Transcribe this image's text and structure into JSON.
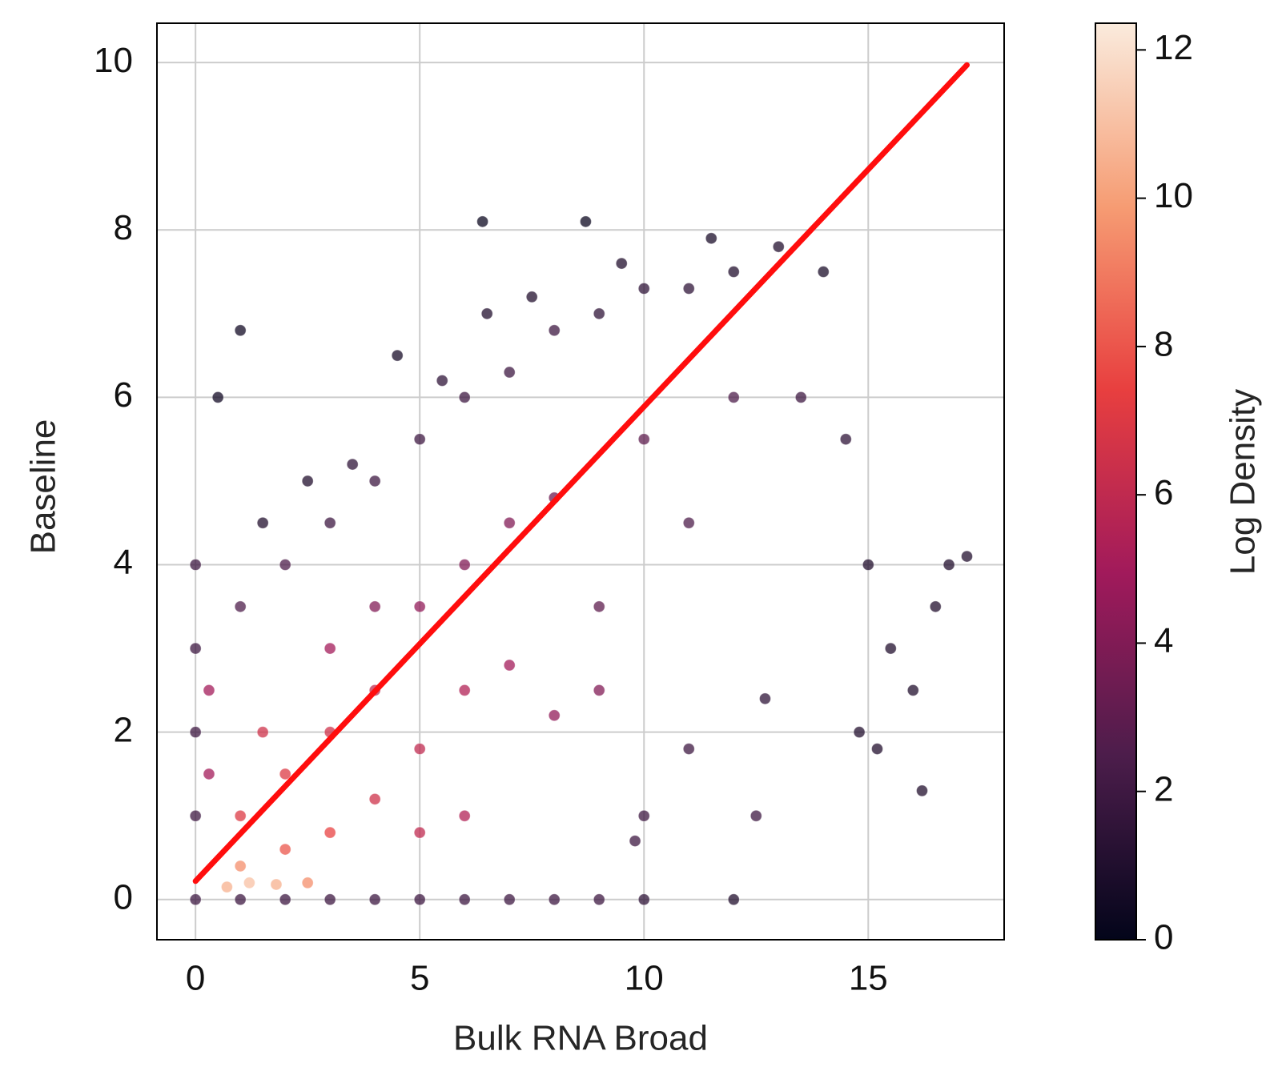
{
  "chart_data": {
    "type": "scatter",
    "x_label": "Bulk RNA Broad",
    "y_label": "Baseline",
    "colorbar_label": "Log Density",
    "xlim": [
      -0.86,
      18.03
    ],
    "ylim": [
      -0.48,
      10.47
    ],
    "clim": [
      0,
      12.36
    ],
    "xticks": [
      0,
      5,
      10,
      15
    ],
    "yticks": [
      0,
      2,
      4,
      6,
      8,
      10
    ],
    "cticks": [
      0,
      2,
      4,
      6,
      8,
      10,
      12
    ],
    "grid": true,
    "colormap": [
      "#03051a",
      "#4c1d4b",
      "#a11a5b",
      "#e83f3f",
      "#f69c73",
      "#faebdd"
    ],
    "x": [
      3,
      4,
      5,
      6,
      7,
      8,
      9,
      10,
      11,
      12,
      13,
      14,
      2,
      1,
      3.5,
      5.5,
      6.5,
      7.5,
      9.5,
      11.5,
      2.5,
      1.5,
      0.5,
      1,
      4.5,
      6.4,
      8.7,
      4,
      6,
      8,
      10,
      12,
      13.5,
      14.5,
      9,
      11,
      3,
      5,
      7,
      1,
      2,
      3,
      4,
      5,
      6,
      7,
      2,
      3,
      5,
      6,
      4,
      1.5,
      8,
      9,
      0.7,
      1.2,
      1.8,
      2.5,
      1,
      15,
      15.5,
      16,
      16.5,
      14.8,
      15.2,
      16.2,
      12.7,
      11,
      10,
      9.8,
      12.5,
      16.8,
      17.2,
      0,
      1,
      2,
      3,
      4,
      5,
      6,
      7,
      8,
      9,
      10,
      12,
      0,
      0,
      0,
      0,
      0.3,
      0.3
    ],
    "y": [
      4.5,
      5,
      5.5,
      6,
      6.3,
      6.8,
      7,
      7.3,
      7.3,
      7.5,
      7.8,
      7.5,
      4,
      3.5,
      5.2,
      6.2,
      7,
      7.2,
      7.6,
      7.9,
      5,
      4.5,
      6,
      6.8,
      6.5,
      8.1,
      8.1,
      3.5,
      4,
      4.8,
      5.5,
      6,
      6,
      5.5,
      3.5,
      4.5,
      3,
      3.5,
      4.5,
      1,
      1.5,
      2,
      1.2,
      1.8,
      2.5,
      2.8,
      0.6,
      0.8,
      0.8,
      1,
      2.5,
      2,
      2.2,
      2.5,
      0.15,
      0.2,
      0.18,
      0.2,
      0.4,
      4,
      3,
      2.5,
      3.5,
      2,
      1.8,
      1.3,
      2.4,
      1.8,
      1,
      0.7,
      1,
      4,
      4.1,
      0,
      0,
      0,
      0,
      0,
      0,
      0,
      0,
      0,
      0,
      0,
      0,
      1,
      2,
      3,
      4,
      2.5,
      1.5
    ],
    "density": [
      2,
      2,
      2,
      2,
      2,
      2,
      1.5,
      1.5,
      1.5,
      1,
      1,
      0.8,
      2.5,
      2.5,
      1.5,
      1.5,
      1,
      1,
      1,
      0.8,
      1,
      1,
      0.5,
      0.5,
      0.7,
      0.3,
      0.3,
      4,
      4,
      3.5,
      3,
      2.5,
      2,
      1.5,
      3,
      2.5,
      5,
      4.5,
      4,
      7,
      7,
      6.5,
      6.5,
      6,
      5.5,
      5,
      8,
      7.5,
      6,
      5.5,
      6,
      6.5,
      4.5,
      4,
      10.5,
      11,
      10.5,
      9.5,
      9.5,
      1,
      1,
      1,
      1,
      1,
      1,
      1,
      1.5,
      2,
      2,
      2,
      2,
      1,
      1,
      2,
      2,
      2,
      2,
      2,
      2,
      2,
      2,
      2,
      2,
      1.5,
      1,
      2,
      2,
      2,
      2,
      5,
      5
    ],
    "fit_line": {
      "color": "#ff0d0d",
      "x": [
        0,
        17.2
      ],
      "y": [
        0.22,
        9.97
      ]
    }
  }
}
